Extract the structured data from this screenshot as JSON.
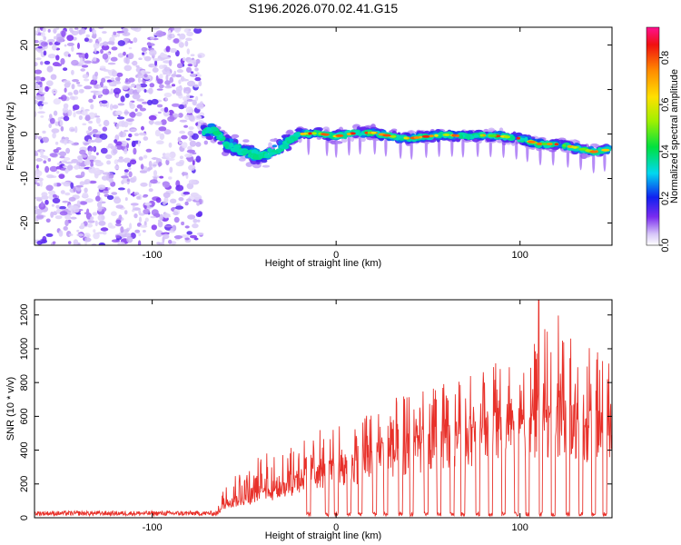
{
  "title": "S196.2026.070.02.41.G15",
  "chart_data": [
    {
      "type": "heatmap",
      "name": "spectrogram",
      "xlabel": "Height of straight line (km)",
      "ylabel": "Frequency (Hz)",
      "xlim": [
        -164,
        150
      ],
      "ylim": [
        -25,
        24
      ],
      "xticks": [
        -100,
        0,
        100
      ],
      "yticks": [
        -20,
        -10,
        0,
        10,
        20
      ],
      "noise_region_x": [
        -164,
        -73
      ],
      "signal_track": {
        "x": [
          -72,
          -67,
          -60,
          -50,
          -40,
          -30,
          -20,
          -10,
          0,
          10,
          20,
          30,
          40,
          50,
          60,
          70,
          80,
          90,
          100,
          110,
          120,
          130,
          140,
          148
        ],
        "frequency": [
          0.5,
          1,
          -2,
          -4,
          -5,
          -3,
          0,
          0.2,
          -0.5,
          0.2,
          0.3,
          -0.5,
          -1,
          -0.5,
          -0.2,
          -0.5,
          -0.3,
          -0.5,
          -1,
          -2.2,
          -2.3,
          -3,
          -4,
          -3.5
        ]
      },
      "colorbar": {
        "label": "Normalized spectral amplitude",
        "range": [
          0,
          0.93
        ],
        "ticks": [
          "0.0",
          "0.2",
          "0.4",
          "0.6",
          "0.8"
        ]
      }
    },
    {
      "type": "line",
      "name": "snr",
      "xlabel": "Height of straight line (km)",
      "ylabel": "SNR (10 * v/v)",
      "xlim": [
        -164,
        150
      ],
      "ylim": [
        0,
        1290
      ],
      "xticks": [
        -100,
        0,
        100
      ],
      "yticks": [
        0,
        200,
        400,
        600,
        800,
        1000,
        1200
      ],
      "color": "#e8312a",
      "envelope": {
        "x": [
          -164,
          -65,
          -64,
          -60,
          -50,
          -40,
          -30,
          -20,
          -10,
          0,
          10,
          20,
          30,
          40,
          50,
          60,
          70,
          80,
          90,
          100,
          110,
          120,
          130,
          140,
          150
        ],
        "base": [
          25,
          25,
          40,
          90,
          120,
          150,
          180,
          240,
          280,
          300,
          330,
          360,
          400,
          420,
          450,
          470,
          500,
          520,
          540,
          560,
          580,
          600,
          560,
          520,
          560
        ],
        "peak": [
          40,
          40,
          120,
          250,
          320,
          380,
          400,
          450,
          520,
          560,
          600,
          620,
          700,
          740,
          760,
          800,
          850,
          900,
          950,
          1000,
          1100,
          1290,
          1050,
          1000,
          980
        ]
      },
      "dropout_x": [
        -15,
        -5,
        0,
        7,
        13,
        21,
        27,
        35,
        41,
        49,
        56,
        63,
        69,
        77,
        84,
        91,
        98,
        104,
        111,
        118,
        126,
        133,
        140,
        146
      ]
    }
  ]
}
